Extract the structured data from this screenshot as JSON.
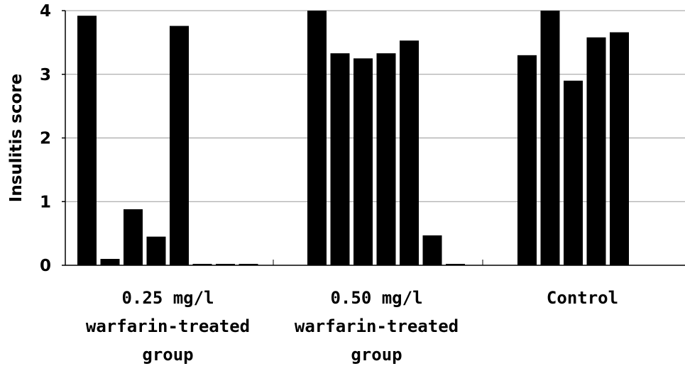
{
  "chart_data": {
    "type": "bar",
    "title": "",
    "xlabel": "",
    "ylabel": "Insulitis score",
    "ylim": [
      0,
      4
    ],
    "yticks": [
      "0",
      "1",
      "2",
      "3",
      "4"
    ],
    "grid": true,
    "groups": [
      {
        "label_lines": [
          "0.25 mg/l",
          "warfarin-treated",
          "group"
        ],
        "values": [
          3.92,
          0.1,
          0.88,
          0.45,
          3.76,
          0.02,
          0.02,
          0.02
        ]
      },
      {
        "label_lines": [
          "0.50 mg/l",
          "warfarin-treated",
          "group"
        ],
        "values": [
          4.0,
          3.33,
          3.25,
          3.33,
          3.53,
          0.47,
          0.02
        ]
      },
      {
        "label_lines": [
          "Control"
        ],
        "values": [
          3.3,
          4.0,
          2.9,
          3.58,
          3.66
        ]
      }
    ],
    "bar_color": "#000000",
    "grid_color": "#999999"
  }
}
